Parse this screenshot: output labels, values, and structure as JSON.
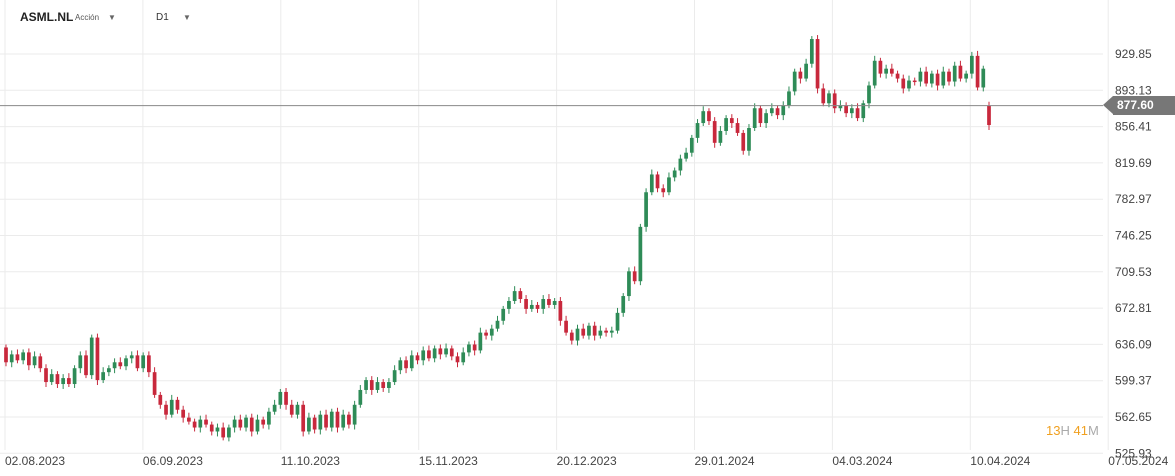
{
  "header": {
    "symbol": "ASML.NL",
    "type_label": "Acción",
    "timeframe": "D1",
    "dropdown_glyph": "▼"
  },
  "current_price": "877.60",
  "timer": {
    "hours": "13",
    "h_unit": "H",
    "minutes": "41",
    "m_unit": "M"
  },
  "colors": {
    "up": "#2e8b57",
    "down": "#c8283c",
    "grid": "#ebebeb",
    "price_line": "#888888",
    "badge": "#777777"
  },
  "chart_data": {
    "type": "candlestick",
    "y_ticks": [
      "929.85",
      "893.13",
      "856.41",
      "819.69",
      "782.97",
      "746.25",
      "709.53",
      "672.81",
      "636.09",
      "599.37",
      "562.65",
      "525.93"
    ],
    "x_ticks": [
      "02.08.2023",
      "06.09.2023",
      "11.10.2023",
      "15.11.2023",
      "20.12.2023",
      "29.01.2024",
      "04.03.2024",
      "10.04.2024",
      "07.05.2024"
    ],
    "ylim": [
      525.93,
      950
    ],
    "current_price": 877.6,
    "grid": true,
    "points": [
      [
        633,
        618
      ],
      [
        618,
        626
      ],
      [
        626,
        620
      ],
      [
        620,
        628
      ],
      [
        628,
        615
      ],
      [
        615,
        624
      ],
      [
        624,
        612
      ],
      [
        612,
        598
      ],
      [
        598,
        606
      ],
      [
        606,
        596
      ],
      [
        596,
        602
      ],
      [
        602,
        596
      ],
      [
        596,
        612
      ],
      [
        612,
        625
      ],
      [
        625,
        605
      ],
      [
        605,
        643
      ],
      [
        643,
        600
      ],
      [
        600,
        608
      ],
      [
        608,
        612
      ],
      [
        612,
        618
      ],
      [
        618,
        614
      ],
      [
        614,
        622
      ],
      [
        622,
        625
      ],
      [
        625,
        612
      ],
      [
        612,
        625
      ],
      [
        625,
        608
      ],
      [
        608,
        585
      ],
      [
        585,
        575
      ],
      [
        575,
        565
      ],
      [
        565,
        580
      ],
      [
        580,
        570
      ],
      [
        570,
        562
      ],
      [
        562,
        558
      ],
      [
        558,
        552
      ],
      [
        552,
        560
      ],
      [
        560,
        555
      ],
      [
        555,
        548
      ],
      [
        548,
        552
      ],
      [
        552,
        542
      ],
      [
        542,
        552
      ],
      [
        552,
        560
      ],
      [
        560,
        552
      ],
      [
        552,
        562
      ],
      [
        562,
        548
      ],
      [
        548,
        560
      ],
      [
        560,
        555
      ],
      [
        555,
        568
      ],
      [
        568,
        575
      ],
      [
        575,
        588
      ],
      [
        588,
        575
      ],
      [
        575,
        565
      ],
      [
        565,
        575
      ],
      [
        575,
        548
      ],
      [
        548,
        562
      ],
      [
        562,
        550
      ],
      [
        550,
        565
      ],
      [
        565,
        552
      ],
      [
        552,
        568
      ],
      [
        568,
        552
      ],
      [
        552,
        565
      ],
      [
        565,
        555
      ],
      [
        555,
        575
      ],
      [
        575,
        590
      ],
      [
        590,
        600
      ],
      [
        600,
        590
      ],
      [
        590,
        598
      ],
      [
        598,
        592
      ],
      [
        592,
        598
      ],
      [
        598,
        610
      ],
      [
        610,
        620
      ],
      [
        620,
        612
      ],
      [
        612,
        625
      ],
      [
        625,
        620
      ],
      [
        620,
        630
      ],
      [
        630,
        622
      ],
      [
        622,
        632
      ],
      [
        632,
        626
      ],
      [
        626,
        632
      ],
      [
        632,
        624
      ],
      [
        624,
        618
      ],
      [
        618,
        628
      ],
      [
        628,
        636
      ],
      [
        636,
        630
      ],
      [
        630,
        648
      ],
      [
        648,
        645
      ],
      [
        645,
        652
      ],
      [
        652,
        660
      ],
      [
        660,
        672
      ],
      [
        672,
        680
      ],
      [
        680,
        690
      ],
      [
        690,
        682
      ],
      [
        682,
        672
      ],
      [
        672,
        676
      ],
      [
        676,
        672
      ],
      [
        672,
        682
      ],
      [
        682,
        676
      ],
      [
        676,
        680
      ],
      [
        680,
        660
      ],
      [
        660,
        648
      ],
      [
        648,
        640
      ],
      [
        640,
        652
      ],
      [
        652,
        645
      ],
      [
        645,
        655
      ],
      [
        655,
        645
      ],
      [
        645,
        650
      ],
      [
        650,
        648
      ],
      [
        648,
        650
      ],
      [
        650,
        668
      ],
      [
        668,
        685
      ],
      [
        685,
        710
      ],
      [
        710,
        700
      ],
      [
        700,
        755
      ],
      [
        755,
        790
      ],
      [
        790,
        808
      ],
      [
        808,
        794
      ],
      [
        794,
        790
      ],
      [
        790,
        805
      ],
      [
        805,
        812
      ],
      [
        812,
        824
      ],
      [
        824,
        830
      ],
      [
        830,
        845
      ],
      [
        845,
        860
      ],
      [
        860,
        872
      ],
      [
        872,
        862
      ],
      [
        862,
        840
      ],
      [
        840,
        852
      ],
      [
        852,
        865
      ],
      [
        865,
        860
      ],
      [
        860,
        850
      ],
      [
        850,
        832
      ],
      [
        832,
        855
      ],
      [
        855,
        875
      ],
      [
        875,
        860
      ],
      [
        860,
        870
      ],
      [
        870,
        875
      ],
      [
        875,
        868
      ],
      [
        868,
        878
      ],
      [
        878,
        892
      ],
      [
        892,
        912
      ],
      [
        912,
        905
      ],
      [
        905,
        920
      ],
      [
        920,
        945
      ],
      [
        945,
        895
      ],
      [
        895,
        880
      ],
      [
        880,
        890
      ],
      [
        890,
        875
      ],
      [
        875,
        878
      ],
      [
        878,
        870
      ],
      [
        870,
        875
      ],
      [
        875,
        865
      ],
      [
        865,
        880
      ],
      [
        880,
        898
      ],
      [
        898,
        923
      ],
      [
        923,
        910
      ],
      [
        910,
        915
      ],
      [
        915,
        910
      ],
      [
        910,
        905
      ],
      [
        905,
        895
      ],
      [
        895,
        903
      ],
      [
        903,
        902
      ],
      [
        902,
        912
      ],
      [
        912,
        900
      ],
      [
        900,
        910
      ],
      [
        910,
        898
      ],
      [
        898,
        912
      ],
      [
        912,
        902
      ],
      [
        902,
        918
      ],
      [
        918,
        905
      ],
      [
        905,
        910
      ],
      [
        910,
        928
      ],
      [
        928,
        896
      ],
      [
        896,
        915
      ],
      [
        877.6,
        858
      ]
    ]
  }
}
